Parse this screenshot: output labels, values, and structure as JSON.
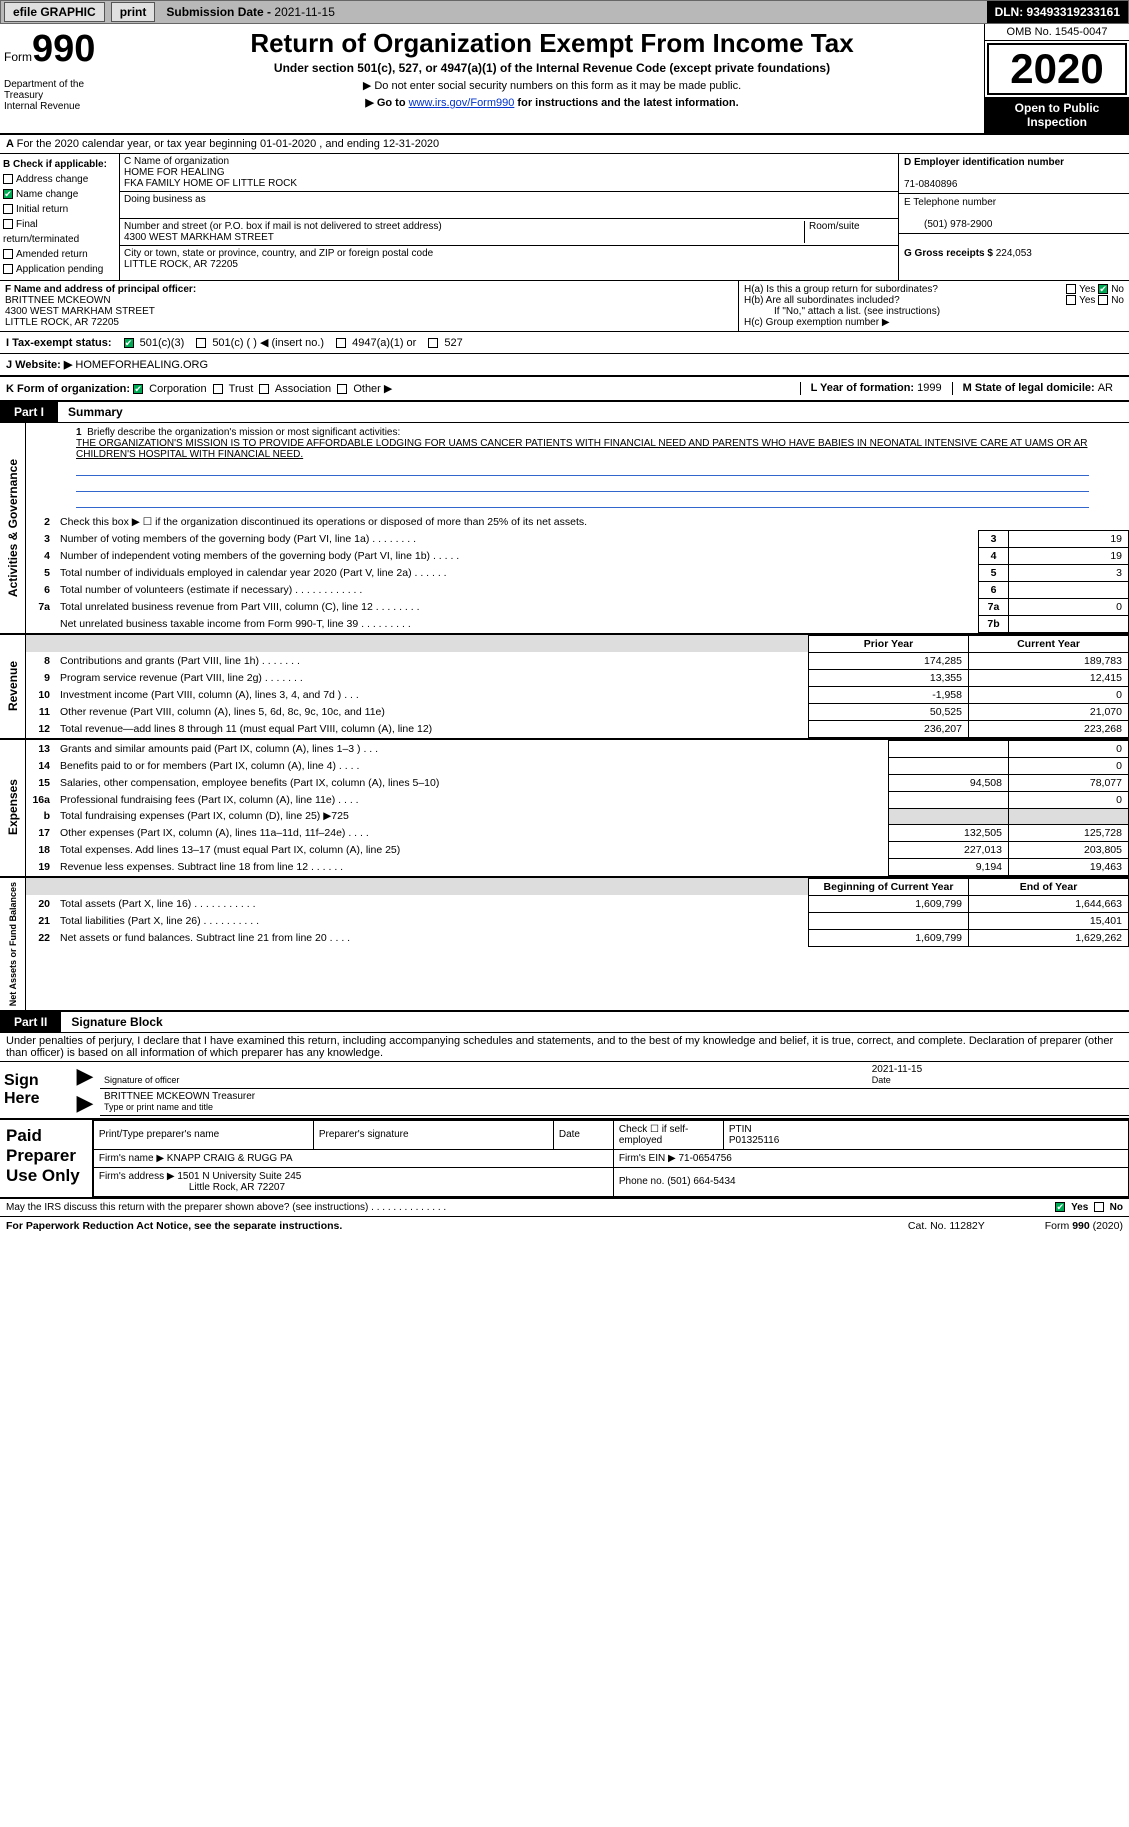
{
  "topbar": {
    "efile": "efile GRAPHIC",
    "print": "print",
    "submission_label": "Submission Date - ",
    "submission_date": "2021-11-15",
    "dln": "DLN: 93493319233161"
  },
  "header": {
    "form_word": "Form",
    "form_number": "990",
    "dept": "Department of the Treasury\nInternal Revenue",
    "title": "Return of Organization Exempt From Income Tax",
    "sub": "Under section 501(c), 527, or 4947(a)(1) of the Internal Revenue Code (except private foundations)",
    "note1": "▶ Do not enter social security numbers on this form as it may be made public.",
    "note2_pre": "▶ Go to ",
    "note2_link": "www.irs.gov/Form990",
    "note2_post": " for instructions and the latest information.",
    "omb": "OMB No. 1545-0047",
    "year": "2020",
    "inspect": "Open to Public Inspection"
  },
  "line_a": "For the 2020 calendar year, or tax year beginning 01-01-2020   , and ending 12-31-2020",
  "col_b": {
    "heading": "B Check if applicable:",
    "items": [
      "Address change",
      "Name change",
      "Initial return",
      "Final return/terminated",
      "Amended return",
      "Application pending"
    ],
    "checked_index": 1
  },
  "col_c": {
    "name_label": "C Name of organization",
    "name1": "HOME FOR HEALING",
    "name2": "FKA FAMILY HOME OF LITTLE ROCK",
    "dba_label": "Doing business as",
    "addr_label": "Number and street (or P.O. box if mail is not delivered to street address)",
    "room_label": "Room/suite",
    "addr": "4300 WEST MARKHAM STREET",
    "city_label": "City or town, state or province, country, and ZIP or foreign postal code",
    "city": "LITTLE ROCK, AR  72205"
  },
  "col_d": {
    "ein_label": "D Employer identification number",
    "ein": "71-0840896",
    "phone_label": "E Telephone number",
    "phone": "(501) 978-2900",
    "gross_label": "G Gross receipts $ ",
    "gross": "224,053"
  },
  "f_block": {
    "label": "F  Name and address of principal officer:",
    "name": "BRITTNEE MCKEOWN",
    "addr1": "4300 WEST MARKHAM STREET",
    "addr2": "LITTLE ROCK, AR  72205"
  },
  "h_block": {
    "ha": "H(a)  Is this a group return for subordinates?",
    "hb": "H(b)  Are all subordinates included?",
    "hb_note": "If \"No,\" attach a list. (see instructions)",
    "hc": "H(c)  Group exemption number ▶",
    "yes": "Yes",
    "no": "No"
  },
  "i_block": {
    "label": "I   Tax-exempt status:",
    "opts": [
      "501(c)(3)",
      "501(c) (  ) ◀ (insert no.)",
      "4947(a)(1) or",
      "527"
    ]
  },
  "j_block": {
    "label": "J   Website: ▶",
    "url": " HOMEFORHEALING.ORG"
  },
  "k_block": {
    "label": "K Form of organization:",
    "opts": [
      "Corporation",
      "Trust",
      "Association",
      "Other ▶"
    ],
    "l_label": "L Year of formation: ",
    "l_val": "1999",
    "m_label": "M State of legal domicile: ",
    "m_val": "AR"
  },
  "part1": {
    "tab": "Part I",
    "title": "Summary"
  },
  "mission": {
    "num": "1",
    "intro": "Briefly describe the organization's mission or most significant activities:",
    "text": "THE ORGANIZATION'S MISSION IS TO PROVIDE AFFORDABLE LODGING FOR UAMS CANCER PATIENTS WITH FINANCIAL NEED AND PARENTS WHO HAVE BABIES IN NEONATAL INTENSIVE CARE AT UAMS OR AR CHILDREN'S HOSPITAL WITH FINANCIAL NEED."
  },
  "gov_rows": [
    {
      "n": "2",
      "t": "Check this box ▶ ☐  if the organization discontinued its operations or disposed of more than 25% of its net assets.",
      "box": "",
      "val": ""
    },
    {
      "n": "3",
      "t": "Number of voting members of the governing body (Part VI, line 1a)  .    .    .    .    .    .    .    .",
      "box": "3",
      "val": "19"
    },
    {
      "n": "4",
      "t": "Number of independent voting members of the governing body (Part VI, line 1b)  .    .    .    .    .",
      "box": "4",
      "val": "19"
    },
    {
      "n": "5",
      "t": "Total number of individuals employed in calendar year 2020 (Part V, line 2a)  .    .    .    .    .    .",
      "box": "5",
      "val": "3"
    },
    {
      "n": "6",
      "t": "Total number of volunteers (estimate if necessary)  .    .    .    .    .    .    .    .    .    .    .    .",
      "box": "6",
      "val": ""
    },
    {
      "n": "7a",
      "t": "Total unrelated business revenue from Part VIII, column (C), line 12  .    .    .    .    .    .    .    .",
      "box": "7a",
      "val": "0"
    },
    {
      "n": "",
      "t": "Net unrelated business taxable income from Form 990-T, line 39  .    .    .    .    .    .    .    .    .",
      "box": "7b",
      "val": ""
    }
  ],
  "section_labels": {
    "gov": "Activities & Governance",
    "rev": "Revenue",
    "exp": "Expenses",
    "net": "Net Assets or Fund Balances"
  },
  "col_headers": {
    "prior": "Prior Year",
    "current": "Current Year",
    "boy": "Beginning of Current Year",
    "eoy": "End of Year"
  },
  "rev_rows": [
    {
      "n": "8",
      "t": "Contributions and grants (Part VIII, line 1h)  .    .    .    .    .    .    .",
      "p": "174,285",
      "c": "189,783"
    },
    {
      "n": "9",
      "t": "Program service revenue (Part VIII, line 2g)  .    .    .    .    .    .    .",
      "p": "13,355",
      "c": "12,415"
    },
    {
      "n": "10",
      "t": "Investment income (Part VIII, column (A), lines 3, 4, and 7d )  .    .    .",
      "p": "-1,958",
      "c": "0"
    },
    {
      "n": "11",
      "t": "Other revenue (Part VIII, column (A), lines 5, 6d, 8c, 9c, 10c, and 11e)",
      "p": "50,525",
      "c": "21,070"
    },
    {
      "n": "12",
      "t": "Total revenue—add lines 8 through 11 (must equal Part VIII, column (A), line 12)",
      "p": "236,207",
      "c": "223,268"
    }
  ],
  "exp_rows": [
    {
      "n": "13",
      "t": "Grants and similar amounts paid (Part IX, column (A), lines 1–3 )  .    .    .",
      "p": "",
      "c": "0"
    },
    {
      "n": "14",
      "t": "Benefits paid to or for members (Part IX, column (A), line 4)  .    .    .    .",
      "p": "",
      "c": "0"
    },
    {
      "n": "15",
      "t": "Salaries, other compensation, employee benefits (Part IX, column (A), lines 5–10)",
      "p": "94,508",
      "c": "78,077"
    },
    {
      "n": "16a",
      "t": "Professional fundraising fees (Part IX, column (A), line 11e)  .    .    .    .",
      "p": "",
      "c": "0"
    },
    {
      "n": "b",
      "t": "Total fundraising expenses (Part IX, column (D), line 25) ▶725",
      "p": "SHADE",
      "c": "SHADE"
    },
    {
      "n": "17",
      "t": "Other expenses (Part IX, column (A), lines 11a–11d, 11f–24e)  .    .    .    .",
      "p": "132,505",
      "c": "125,728"
    },
    {
      "n": "18",
      "t": "Total expenses. Add lines 13–17 (must equal Part IX, column (A), line 25)",
      "p": "227,013",
      "c": "203,805"
    },
    {
      "n": "19",
      "t": "Revenue less expenses. Subtract line 18 from line 12  .    .    .    .    .    .",
      "p": "9,194",
      "c": "19,463"
    }
  ],
  "net_rows": [
    {
      "n": "20",
      "t": "Total assets (Part X, line 16)  .    .    .    .    .    .    .    .    .    .    .",
      "p": "1,609,799",
      "c": "1,644,663"
    },
    {
      "n": "21",
      "t": "Total liabilities (Part X, line 26)  .    .    .    .    .    .    .    .    .    .",
      "p": "",
      "c": "15,401"
    },
    {
      "n": "22",
      "t": "Net assets or fund balances. Subtract line 21 from line 20  .    .    .    .",
      "p": "1,609,799",
      "c": "1,629,262"
    }
  ],
  "part2": {
    "tab": "Part II",
    "title": "Signature Block"
  },
  "sig_decl": "Under penalties of perjury, I declare that I have examined this return, including accompanying schedules and statements, and to the best of my knowledge and belief, it is true, correct, and complete. Declaration of preparer (other than officer) is based on all information of which preparer has any knowledge.",
  "sign_here": "Sign Here",
  "sig": {
    "date": "2021-11-15",
    "sig_label": "Signature of officer",
    "date_label": "Date",
    "name": "BRITTNEE MCKEOWN  Treasurer",
    "name_label": "Type or print name and title"
  },
  "paid_label": "Paid Preparer Use Only",
  "preparer": {
    "h1": "Print/Type preparer's name",
    "h2": "Preparer's signature",
    "h3": "Date",
    "h4": "Check ☐ if self-employed",
    "h5_label": "PTIN",
    "h5": "P01325116",
    "firm_label": "Firm's name    ▶ ",
    "firm": "KNAPP CRAIG & RUGG PA",
    "ein_label": "Firm's EIN ▶ ",
    "ein": "71-0654756",
    "addr_label": "Firm's address ▶ ",
    "addr1": "1501 N University Suite 245",
    "addr2": "Little Rock, AR  72207",
    "phone_label": "Phone no. ",
    "phone": "(501) 664-5434"
  },
  "discuss": "May the IRS discuss this return with the preparer shown above? (see instructions)  .    .    .    .    .    .    .    .    .    .    .    .    .    .",
  "footer": {
    "left": "For Paperwork Reduction Act Notice, see the separate instructions.",
    "mid": "Cat. No. 11282Y",
    "right_pre": "Form ",
    "right_bold": "990",
    "right_post": " (2020)"
  }
}
